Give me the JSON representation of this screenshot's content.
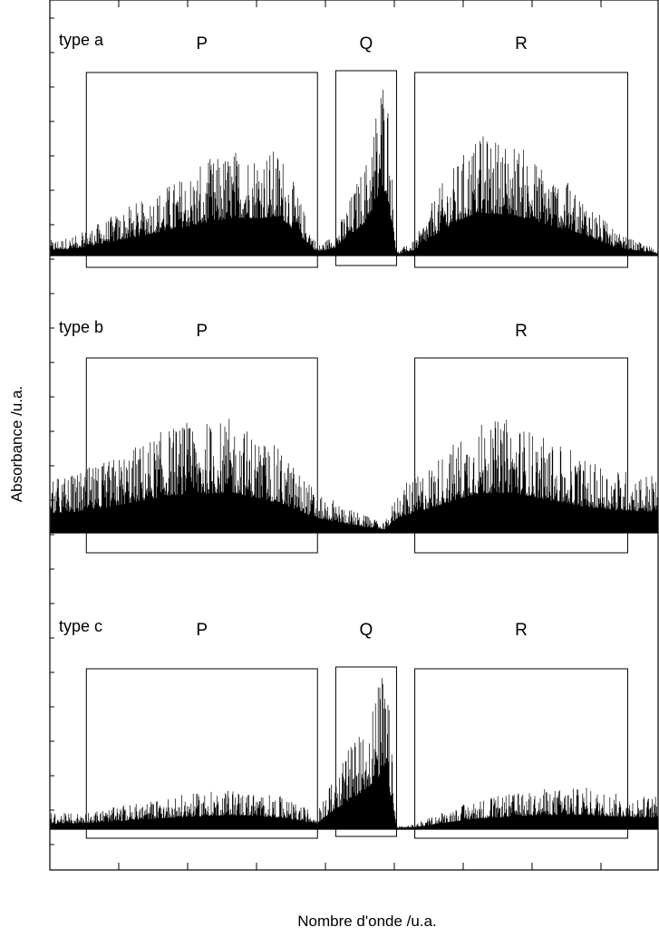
{
  "chart_data": {
    "type": "line",
    "xlabel": "Nombre d'onde /u.a.",
    "ylabel": "Absorbance /u.a.",
    "xlim": [
      0,
      1
    ],
    "grid": false,
    "legend": "none",
    "line_color": "#000000",
    "panels": [
      {
        "label": "type a",
        "branches": [
          {
            "name": "P",
            "x_range": [
              0.06,
              0.44
            ]
          },
          {
            "name": "Q",
            "x_range": [
              0.47,
              0.57
            ]
          },
          {
            "name": "R",
            "x_range": [
              0.6,
              0.95
            ]
          }
        ],
        "envelope": {
          "x": [
            0,
            0.04,
            0.1,
            0.2,
            0.3,
            0.38,
            0.44,
            0.47,
            0.52,
            0.54,
            0.545,
            0.555,
            0.57,
            0.6,
            0.64,
            0.7,
            0.76,
            0.82,
            0.88,
            0.93,
            1.0
          ],
          "y": [
            0.08,
            0.1,
            0.2,
            0.38,
            0.55,
            0.55,
            0.05,
            0.12,
            0.5,
            0.85,
            1.0,
            0.9,
            0.02,
            0.08,
            0.35,
            0.62,
            0.6,
            0.45,
            0.3,
            0.12,
            0.03
          ]
        }
      },
      {
        "label": "type b",
        "branches": [
          {
            "name": "P",
            "x_range": [
              0.06,
              0.44
            ]
          },
          {
            "name": "R",
            "x_range": [
              0.6,
              0.95
            ]
          }
        ],
        "envelope": {
          "x": [
            0,
            0.04,
            0.1,
            0.2,
            0.3,
            0.38,
            0.44,
            0.5,
            0.55,
            0.575,
            0.6,
            0.64,
            0.7,
            0.76,
            0.82,
            0.88,
            0.93,
            1.0
          ],
          "y": [
            0.3,
            0.32,
            0.4,
            0.58,
            0.62,
            0.45,
            0.22,
            0.12,
            0.05,
            0.25,
            0.3,
            0.42,
            0.6,
            0.62,
            0.5,
            0.4,
            0.35,
            0.32
          ]
        }
      },
      {
        "label": "type c",
        "branches": [
          {
            "name": "P",
            "x_range": [
              0.06,
              0.44
            ]
          },
          {
            "name": "Q",
            "x_range": [
              0.47,
              0.57
            ]
          },
          {
            "name": "R",
            "x_range": [
              0.6,
              0.95
            ]
          }
        ],
        "envelope": {
          "x": [
            0,
            0.04,
            0.1,
            0.2,
            0.3,
            0.38,
            0.44,
            0.47,
            0.52,
            0.54,
            0.545,
            0.555,
            0.57,
            0.6,
            0.64,
            0.7,
            0.76,
            0.82,
            0.88,
            0.93,
            1.0
          ],
          "y": [
            0.1,
            0.1,
            0.13,
            0.2,
            0.25,
            0.2,
            0.1,
            0.35,
            0.7,
            0.9,
            1.0,
            0.9,
            0.02,
            0.03,
            0.1,
            0.18,
            0.22,
            0.25,
            0.25,
            0.22,
            0.2
          ]
        }
      }
    ]
  }
}
